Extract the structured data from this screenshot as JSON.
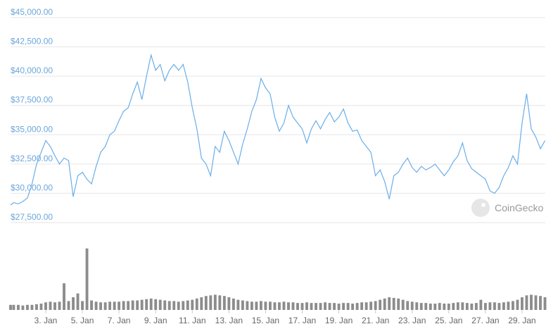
{
  "chart_data": [
    {
      "type": "line",
      "watermark": "CoinGecko",
      "x": [
        1.08,
        1.25,
        1.5,
        1.75,
        2,
        2.25,
        2.5,
        2.75,
        3,
        3.25,
        3.5,
        3.75,
        4,
        4.25,
        4.5,
        4.75,
        5,
        5.25,
        5.5,
        5.75,
        6,
        6.25,
        6.5,
        6.75,
        7,
        7.25,
        7.5,
        7.75,
        8,
        8.25,
        8.5,
        8.75,
        9,
        9.25,
        9.5,
        9.75,
        10,
        10.25,
        10.5,
        10.75,
        11,
        11.25,
        11.5,
        11.75,
        12,
        12.25,
        12.5,
        12.75,
        13,
        13.25,
        13.5,
        13.75,
        14,
        14.25,
        14.5,
        14.75,
        15,
        15.25,
        15.5,
        15.75,
        16,
        16.25,
        16.5,
        16.75,
        17,
        17.25,
        17.5,
        17.75,
        18,
        18.25,
        18.5,
        18.75,
        19,
        19.25,
        19.5,
        19.75,
        20,
        20.25,
        20.5,
        20.75,
        21,
        21.25,
        21.5,
        21.75,
        22,
        22.25,
        22.5,
        22.75,
        23,
        23.25,
        23.5,
        23.75,
        24,
        24.25,
        24.5,
        24.75,
        25,
        25.25,
        25.5,
        25.75,
        26,
        26.25,
        26.5,
        26.75,
        27,
        27.25,
        27.5,
        27.75,
        28,
        28.25,
        28.5,
        28.75,
        29,
        29.25,
        29.5,
        29.75,
        30,
        30.25
      ],
      "values": [
        29000,
        29200,
        29100,
        29300,
        29600,
        30800,
        32500,
        33500,
        34500,
        34000,
        33200,
        32500,
        33000,
        32800,
        29700,
        31500,
        31800,
        31200,
        30800,
        32300,
        33500,
        34000,
        35000,
        35300,
        36200,
        37000,
        37300,
        38500,
        39500,
        38000,
        40000,
        41800,
        40500,
        41000,
        39600,
        40500,
        41000,
        40500,
        41000,
        39500,
        37300,
        35500,
        33000,
        32500,
        31500,
        34000,
        33500,
        35300,
        34500,
        33500,
        32500,
        34200,
        35500,
        37000,
        38000,
        39800,
        39000,
        38500,
        36500,
        35300,
        36000,
        37500,
        36500,
        36000,
        35500,
        34300,
        35500,
        36200,
        35500,
        36300,
        36900,
        36100,
        36500,
        37200,
        36000,
        35300,
        35400,
        34500,
        34000,
        33500,
        31500,
        32000,
        31000,
        29500,
        31500,
        31800,
        32500,
        33000,
        32200,
        31800,
        32300,
        32000,
        32200,
        32500,
        32000,
        31500,
        32000,
        32700,
        33200,
        34300,
        32800,
        32100,
        31800,
        31500,
        31200,
        30200,
        30000,
        30500,
        31500,
        32200,
        33200,
        32500,
        36000,
        38500,
        35500,
        34800,
        33800,
        34500
      ],
      "color": "#6aaee8",
      "grid": true,
      "xlim": [
        1.08,
        30.27
      ],
      "ylim": [
        27500,
        45000
      ],
      "yticks": [
        {
          "value": 27500,
          "label": "$27,500.00"
        },
        {
          "value": 30000,
          "label": "$30,000.00"
        },
        {
          "value": 32500,
          "label": "$32,500.00"
        },
        {
          "value": 35000,
          "label": "$35,000.00"
        },
        {
          "value": 37500,
          "label": "$37,500.00"
        },
        {
          "value": 40000,
          "label": "$40,000.00"
        },
        {
          "value": 42500,
          "label": "$42,500.00"
        },
        {
          "value": 45000,
          "label": "$45,000.00"
        }
      ]
    },
    {
      "type": "bar",
      "color": "#8c8c8c",
      "x": [
        1.08,
        1.25,
        1.5,
        1.75,
        2,
        2.25,
        2.5,
        2.75,
        3,
        3.25,
        3.5,
        3.75,
        4,
        4.25,
        4.5,
        4.75,
        5,
        5.25,
        5.5,
        5.75,
        6,
        6.25,
        6.5,
        6.75,
        7,
        7.25,
        7.5,
        7.75,
        8,
        8.25,
        8.5,
        8.75,
        9,
        9.25,
        9.5,
        9.75,
        10,
        10.25,
        10.5,
        10.75,
        11,
        11.25,
        11.5,
        11.75,
        12,
        12.25,
        12.5,
        12.75,
        13,
        13.25,
        13.5,
        13.75,
        14,
        14.25,
        14.5,
        14.75,
        15,
        15.25,
        15.5,
        15.75,
        16,
        16.25,
        16.5,
        16.75,
        17,
        17.25,
        17.5,
        17.75,
        18,
        18.25,
        18.5,
        18.75,
        19,
        19.25,
        19.5,
        19.75,
        20,
        20.25,
        20.5,
        20.75,
        21,
        21.25,
        21.5,
        21.75,
        22,
        22.25,
        22.5,
        22.75,
        23,
        23.25,
        23.5,
        23.75,
        24,
        24.25,
        24.5,
        24.75,
        25,
        25.25,
        25.5,
        25.75,
        26,
        26.25,
        26.5,
        26.75,
        27,
        27.25,
        27.5,
        27.75,
        28,
        28.25,
        28.5,
        28.75,
        29,
        29.25,
        29.5,
        29.75,
        30,
        30.25
      ],
      "values": [
        8,
        8,
        8,
        7,
        8,
        8,
        9,
        10,
        12,
        13,
        12,
        13,
        42,
        14,
        20,
        26,
        14,
        97,
        15,
        13,
        12,
        12,
        13,
        13,
        13,
        14,
        14,
        15,
        15,
        16,
        17,
        18,
        17,
        16,
        15,
        14,
        14,
        13,
        14,
        15,
        16,
        18,
        20,
        22,
        23,
        24,
        23,
        22,
        20,
        18,
        16,
        15,
        14,
        13,
        13,
        14,
        13,
        13,
        12,
        12,
        13,
        12,
        12,
        11,
        11,
        12,
        11,
        11,
        11,
        12,
        11,
        11,
        10,
        11,
        11,
        10,
        11,
        12,
        12,
        13,
        14,
        16,
        18,
        20,
        19,
        18,
        16,
        14,
        13,
        12,
        11,
        11,
        10,
        10,
        11,
        10,
        10,
        11,
        12,
        12,
        11,
        10,
        11,
        16,
        11,
        12,
        12,
        11,
        12,
        13,
        14,
        16,
        20,
        23,
        24,
        23,
        22,
        20
      ],
      "xlim": [
        1.08,
        30.27
      ],
      "ylim": [
        0,
        100
      ],
      "xticks": [
        {
          "value": 3,
          "label": "3. Jan"
        },
        {
          "value": 5,
          "label": "5. Jan"
        },
        {
          "value": 7,
          "label": "7. Jan"
        },
        {
          "value": 9,
          "label": "9. Jan"
        },
        {
          "value": 11,
          "label": "11. Jan"
        },
        {
          "value": 13,
          "label": "13. Jan"
        },
        {
          "value": 15,
          "label": "15. Jan"
        },
        {
          "value": 17,
          "label": "17. Jan"
        },
        {
          "value": 19,
          "label": "19. Jan"
        },
        {
          "value": 21,
          "label": "21. Jan"
        },
        {
          "value": 23,
          "label": "23. Jan"
        },
        {
          "value": 25,
          "label": "25. Jan"
        },
        {
          "value": 27,
          "label": "27. Jan"
        },
        {
          "value": 29,
          "label": "29. Jan"
        }
      ]
    }
  ]
}
